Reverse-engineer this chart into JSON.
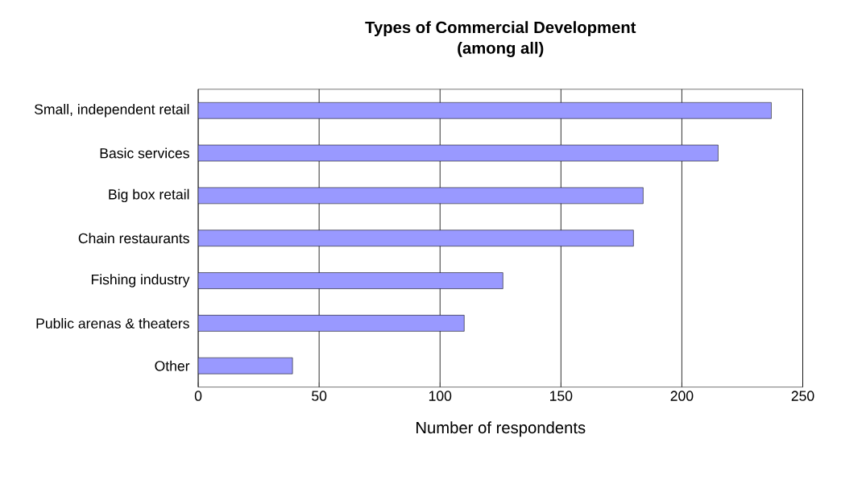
{
  "chart_data": {
    "type": "bar",
    "orientation": "horizontal",
    "title": "Types of Commercial Development",
    "subtitle": "(among all)",
    "xlabel": "Number of respondents",
    "categories": [
      "Small, independent retail",
      "Basic services",
      "Big box retail",
      "Chain restaurants",
      "Fishing industry",
      "Public arenas & theaters",
      "Other"
    ],
    "values": [
      237,
      215,
      184,
      180,
      126,
      110,
      39
    ],
    "color": "#9999ff",
    "xlim": [
      0,
      250
    ],
    "xticks": [
      0,
      50,
      100,
      150,
      200,
      250
    ],
    "grid": "x"
  }
}
